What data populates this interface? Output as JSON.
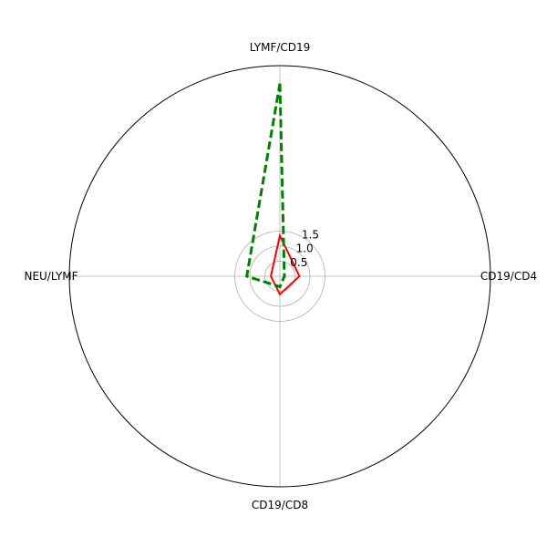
{
  "chart_data": {
    "type": "radar",
    "axes": [
      "LYMF/CD19",
      "CD19/CD4",
      "CD19/CD8",
      "NEU/LYMF"
    ],
    "rticks": [
      0.5,
      1.0,
      1.5
    ],
    "rtick_labels": [
      "0.5",
      "1.0",
      "1.5"
    ],
    "rlim": [
      0,
      7.0
    ],
    "grid": true,
    "series": [
      {
        "values": [
          1.35,
          0.65,
          0.6,
          0.3
        ],
        "color": "#ff0000",
        "linestyle": "solid"
      },
      {
        "values": [
          6.4,
          0.15,
          0.35,
          1.1
        ],
        "color": "#008000",
        "linestyle": "dashed"
      }
    ]
  }
}
